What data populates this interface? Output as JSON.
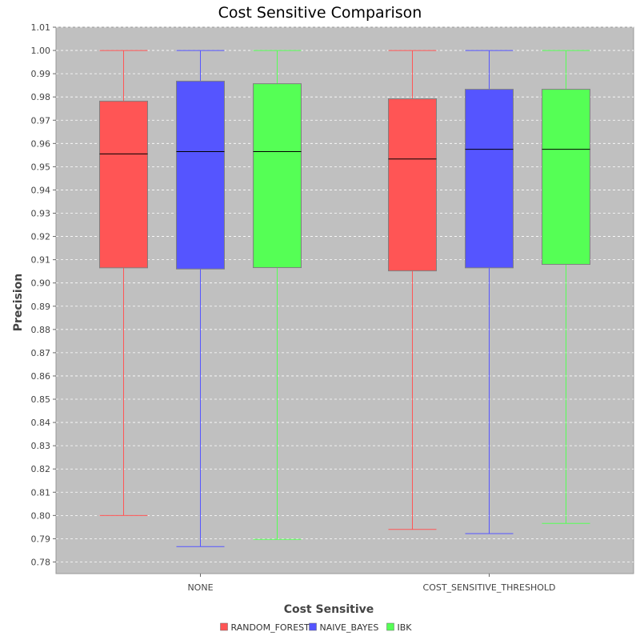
{
  "chart_data": {
    "type": "box",
    "title": "Cost Sensitive Comparison",
    "xlabel": "Cost Sensitive",
    "ylabel": "Precision",
    "ylim": [
      0.775,
      1.01
    ],
    "yticks": [
      0.78,
      0.79,
      0.8,
      0.81,
      0.82,
      0.83,
      0.84,
      0.85,
      0.86,
      0.87,
      0.88,
      0.89,
      0.9,
      0.91,
      0.92,
      0.93,
      0.94,
      0.95,
      0.96,
      0.97,
      0.98,
      0.99,
      1.0,
      1.01
    ],
    "yticklabels": [
      "0.78",
      "0.79",
      "0.80",
      "0.81",
      "0.82",
      "0.83",
      "0.84",
      "0.85",
      "0.86",
      "0.87",
      "0.88",
      "0.89",
      "0.90",
      "0.91",
      "0.92",
      "0.93",
      "0.94",
      "0.95",
      "0.96",
      "0.97",
      "0.98",
      "0.99",
      "1.00",
      "1.01"
    ],
    "categories": [
      "NONE",
      "COST_SENSITIVE_THRESHOLD"
    ],
    "grid": true,
    "background": "#c0c0c0",
    "legend_position": "bottom",
    "series": [
      {
        "name": "RANDOM_FOREST",
        "color": "#ff5555",
        "boxes": [
          {
            "min": 0.8,
            "q1": 0.9065,
            "median": 0.9555,
            "q3": 0.9782,
            "max": 1.0
          },
          {
            "min": 0.794,
            "q1": 0.9052,
            "median": 0.9533,
            "q3": 0.9792,
            "max": 1.0
          }
        ]
      },
      {
        "name": "NAIVE_BAYES",
        "color": "#5555ff",
        "boxes": [
          {
            "min": 0.7866,
            "q1": 0.906,
            "median": 0.9565,
            "q3": 0.9868,
            "max": 1.0
          },
          {
            "min": 0.7922,
            "q1": 0.9065,
            "median": 0.9575,
            "q3": 0.9833,
            "max": 1.0
          }
        ]
      },
      {
        "name": "IBK",
        "color": "#55ff55",
        "boxes": [
          {
            "min": 0.7897,
            "q1": 0.9066,
            "median": 0.9565,
            "q3": 0.9857,
            "max": 1.0
          },
          {
            "min": 0.7966,
            "q1": 0.908,
            "median": 0.9575,
            "q3": 0.9833,
            "max": 1.0
          }
        ]
      }
    ]
  }
}
